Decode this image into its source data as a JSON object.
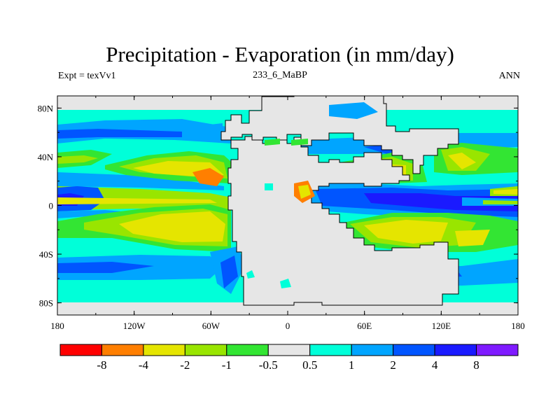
{
  "title": "Precipitation - Evaporation (in mm/day)",
  "experiment_label": "Expt = texVv1",
  "subtitle": "233_6_MaBP",
  "season": "ANN",
  "x_ticks": [
    "180",
    "120W",
    "60W",
    "0",
    "60E",
    "120E",
    "180"
  ],
  "y_ticks": [
    "80N",
    "40N",
    "0",
    "40S",
    "80S"
  ],
  "colorbar": {
    "colors": [
      "#ff0000",
      "#ff7f00",
      "#e5e500",
      "#99e500",
      "#33e533",
      "#e6e6e6",
      "#00ffd9",
      "#00a5ff",
      "#0055ff",
      "#1a1aff",
      "#7f1aff"
    ],
    "labels": [
      "-8",
      "-4",
      "-2",
      "-1",
      "-0.5",
      "0.5",
      "1",
      "2",
      "4",
      "8"
    ]
  },
  "colors": {
    "land": "#e6e6e6",
    "ocean_background": "#00ffd9"
  }
}
